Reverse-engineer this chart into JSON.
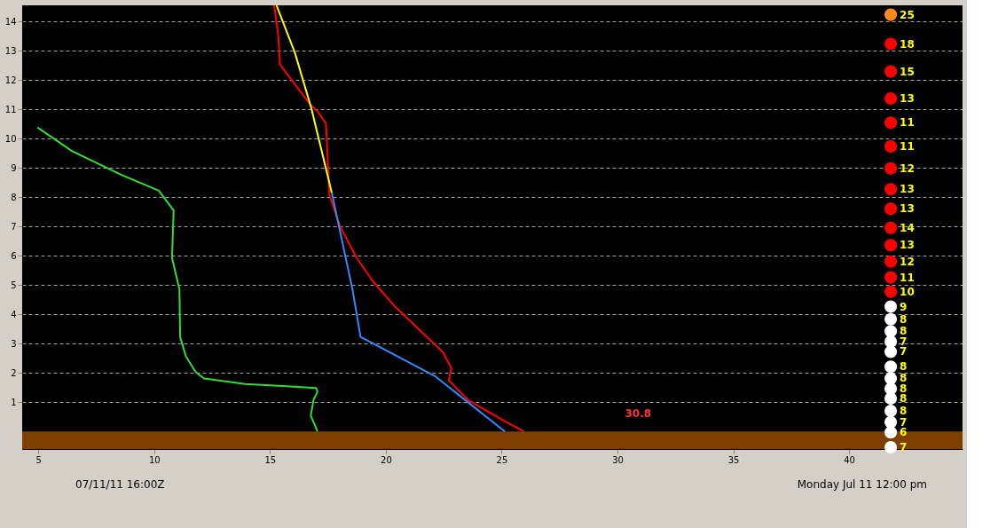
{
  "chart_data": {
    "type": "line",
    "xlim": [
      4.3,
      44.9
    ],
    "ylim": [
      -0.6,
      14.55
    ],
    "xticks": [
      5,
      10,
      15,
      20,
      25,
      30,
      35,
      40
    ],
    "yticks": [
      1,
      2,
      3,
      4,
      5,
      6,
      7,
      8,
      9,
      10,
      11,
      12,
      13,
      14
    ],
    "grid": "y",
    "legend": false,
    "marker": "none",
    "line_style": "solid",
    "bands": [
      {
        "axis": "y",
        "from": -0.6,
        "to": 0,
        "color": "#7f3f00"
      }
    ],
    "series": [
      {
        "color": "#ff0000",
        "x": [
          15.18,
          15.36,
          15.43,
          16.07,
          16.71,
          17.06,
          17.42,
          17.56,
          18.02,
          18.74,
          19.45,
          20.34,
          21.41,
          22.47,
          22.83,
          22.72,
          23.54,
          24.43,
          25.32,
          25.96
        ],
        "values": [
          14.55,
          13.48,
          12.53,
          11.86,
          11.19,
          10.92,
          10.51,
          8.09,
          7.01,
          5.93,
          5.12,
          4.31,
          3.5,
          2.7,
          2.16,
          1.75,
          1.08,
          0.67,
          0.27,
          0
        ]
      },
      {
        "color": "#33dd33",
        "x": [
          4.96,
          6.46,
          8.59,
          10.2,
          10.84,
          10.77,
          11.09,
          11.12,
          11.37,
          11.8,
          12.15,
          13.93,
          15.71,
          16.99,
          17.05,
          16.88,
          16.76,
          17.05
        ],
        "values": [
          10.38,
          9.57,
          8.76,
          8.22,
          7.55,
          5.93,
          4.85,
          3.23,
          2.56,
          2.02,
          1.81,
          1.62,
          1.54,
          1.48,
          1.35,
          1.08,
          0.54,
          0
        ]
      },
      {
        "color": "#3388ff",
        "x": [
          17.67,
          18.56,
          18.91,
          22.12,
          25.14
        ],
        "values": [
          8.14,
          4.85,
          3.23,
          1.89,
          0
        ]
      },
      {
        "color": "#ffff00",
        "x": [
          15.28,
          16.07,
          16.78,
          17.67
        ],
        "values": [
          14.55,
          12.94,
          11.05,
          8.14
        ]
      },
      {
        "type": "scatter",
        "marker": "circle",
        "x": [
          41.8,
          41.8,
          41.8,
          41.8,
          41.8,
          41.8,
          41.8,
          41.8,
          41.8,
          41.8,
          41.8,
          41.8,
          41.8,
          41.8,
          41.8,
          41.8,
          41.8,
          41.8,
          41.8,
          41.8,
          41.8,
          41.8,
          41.8,
          41.8,
          41.8,
          41.8,
          41.8
        ],
        "values": [
          14.23,
          13.23,
          12.29,
          11.37,
          10.54,
          9.73,
          8.98,
          8.27,
          7.6,
          6.95,
          6.36,
          5.8,
          5.26,
          4.77,
          4.26,
          3.83,
          3.42,
          3.07,
          2.72,
          2.21,
          1.81,
          1.46,
          1.13,
          0.7,
          0.32,
          -0.03,
          -0.54
        ],
        "colors": [
          "#ff8c1a",
          "#ff0000",
          "#ff0000",
          "#ff0000",
          "#ff0000",
          "#ff0000",
          "#ff0000",
          "#ff0000",
          "#ff0000",
          "#ff0000",
          "#ff0000",
          "#ff0000",
          "#ff0000",
          "#ff0000",
          "#ffffff",
          "#ffffff",
          "#ffffff",
          "#ffffff",
          "#ffffff",
          "#ffffff",
          "#ffffff",
          "#ffffff",
          "#ffffff",
          "#ffffff",
          "#ffffff",
          "#ffffff",
          "#ffffff"
        ]
      }
    ],
    "annotations": [
      "25",
      "18",
      "15",
      "13",
      "11",
      "11",
      "12",
      "13",
      "13",
      "14",
      "13",
      "12",
      "11",
      "10",
      "9",
      "8",
      "8",
      "7",
      "7",
      "8",
      "8",
      "8",
      "8",
      "8",
      "7",
      "6",
      "7",
      "30.8",
      "07/11/11    16:00Z",
      "Monday   Jul 11  12:00 pm"
    ]
  }
}
